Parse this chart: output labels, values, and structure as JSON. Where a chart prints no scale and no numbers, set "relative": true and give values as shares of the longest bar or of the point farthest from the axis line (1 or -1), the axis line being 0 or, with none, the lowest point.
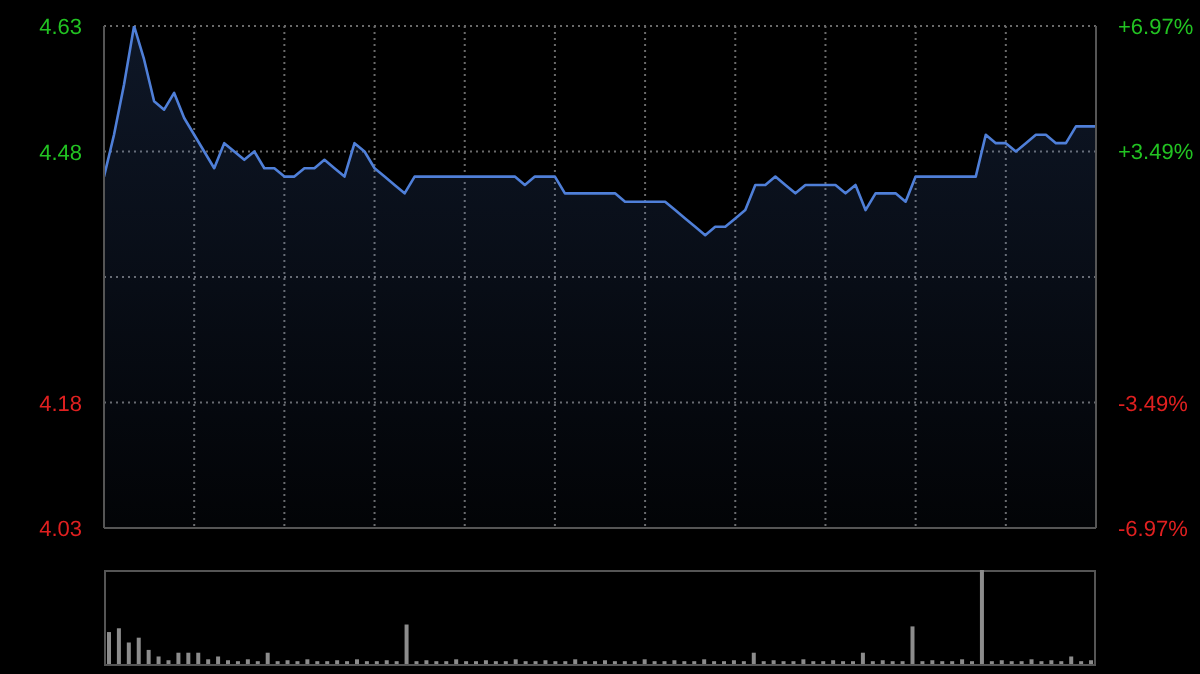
{
  "chart_data": [
    {
      "type": "area",
      "categories": [
        null,
        null,
        null,
        null,
        null,
        null,
        null,
        null,
        null,
        null,
        null,
        null,
        null,
        null,
        null,
        null,
        null,
        null,
        null,
        null,
        null,
        null,
        null,
        null,
        null,
        null,
        null,
        null,
        null,
        null,
        null,
        null,
        null,
        null,
        null,
        null,
        null,
        null,
        null,
        null,
        null,
        null,
        null,
        null,
        null,
        null,
        null,
        null,
        null,
        null,
        null,
        null,
        null,
        null,
        null,
        null,
        null,
        null,
        null,
        null,
        null,
        null,
        null,
        null,
        null,
        null,
        null,
        null,
        null,
        null,
        null,
        null,
        null,
        null,
        null,
        null,
        null,
        null,
        null,
        null,
        null,
        null,
        null,
        null,
        null,
        null,
        null,
        null,
        null,
        null,
        null,
        null,
        null,
        null,
        null,
        null,
        null,
        null,
        null,
        null
      ],
      "series": [
        {
          "color": "#4f7fd8",
          "values": [
            4.45,
            4.5,
            4.56,
            4.63,
            4.59,
            4.54,
            4.53,
            4.55,
            4.52,
            4.5,
            4.48,
            4.46,
            4.49,
            4.48,
            4.47,
            4.48,
            4.46,
            4.46,
            4.45,
            4.45,
            4.46,
            4.46,
            4.47,
            4.46,
            4.45,
            4.49,
            4.48,
            4.46,
            4.45,
            4.44,
            4.43,
            4.45,
            4.45,
            4.45,
            4.45,
            4.45,
            4.45,
            4.45,
            4.45,
            4.45,
            4.45,
            4.45,
            4.44,
            4.45,
            4.45,
            4.45,
            4.43,
            4.43,
            4.43,
            4.43,
            4.43,
            4.43,
            4.42,
            4.42,
            4.42,
            4.42,
            4.42,
            4.41,
            4.4,
            4.39,
            4.38,
            4.39,
            4.39,
            4.4,
            4.41,
            4.44,
            4.44,
            4.45,
            4.44,
            4.43,
            4.44,
            4.44,
            4.44,
            4.44,
            4.43,
            4.44,
            4.41,
            4.43,
            4.43,
            4.43,
            4.42,
            4.45,
            4.45,
            4.45,
            4.45,
            4.45,
            4.45,
            4.45,
            4.5,
            4.49,
            4.49,
            4.48,
            4.49,
            4.5,
            4.5,
            4.49,
            4.49,
            4.51,
            4.51,
            4.51
          ]
        }
      ],
      "ylim": [
        4.03,
        4.63
      ],
      "yticks": [
        4.63,
        4.48,
        {
          "value": 4.33,
          "label": null
        },
        4.18,
        4.03
      ],
      "y2lim": [
        -6.97,
        6.97
      ],
      "y2ticks": [
        {
          "value": 6.97,
          "label": "+6.97%"
        },
        {
          "value": 3.49,
          "label": "+3.49%"
        },
        {
          "value": -3.49,
          "label": "-3.49%"
        },
        {
          "value": -6.97,
          "label": "-6.97%"
        }
      ],
      "grid": true,
      "legend": false
    },
    {
      "type": "bar",
      "relative": true,
      "categories": [
        null,
        null,
        null,
        null,
        null,
        null,
        null,
        null,
        null,
        null,
        null,
        null,
        null,
        null,
        null,
        null,
        null,
        null,
        null,
        null,
        null,
        null,
        null,
        null,
        null,
        null,
        null,
        null,
        null,
        null,
        null,
        null,
        null,
        null,
        null,
        null,
        null,
        null,
        null,
        null,
        null,
        null,
        null,
        null,
        null,
        null,
        null,
        null,
        null,
        null,
        null,
        null,
        null,
        null,
        null,
        null,
        null,
        null,
        null,
        null,
        null,
        null,
        null,
        null,
        null,
        null,
        null,
        null,
        null,
        null,
        null,
        null,
        null,
        null,
        null,
        null,
        null,
        null,
        null,
        null,
        null,
        null,
        null,
        null,
        null,
        null,
        null,
        null,
        null,
        null,
        null,
        null,
        null,
        null,
        null,
        null,
        null,
        null,
        null,
        null
      ],
      "series": [
        {
          "color": "#8c8c8c",
          "values": [
            0.34,
            0.38,
            0.23,
            0.28,
            0.15,
            0.08,
            0.04,
            0.12,
            0.12,
            0.12,
            0.05,
            0.08,
            0.04,
            0.03,
            0.05,
            0.03,
            0.12,
            0.03,
            0.04,
            0.03,
            0.05,
            0.03,
            0.03,
            0.04,
            0.03,
            0.05,
            0.03,
            0.03,
            0.04,
            0.03,
            0.42,
            0.03,
            0.04,
            0.03,
            0.03,
            0.05,
            0.03,
            0.03,
            0.04,
            0.03,
            0.03,
            0.05,
            0.03,
            0.03,
            0.04,
            0.03,
            0.03,
            0.05,
            0.03,
            0.03,
            0.04,
            0.03,
            0.03,
            0.03,
            0.05,
            0.03,
            0.03,
            0.04,
            0.03,
            0.03,
            0.05,
            0.03,
            0.03,
            0.04,
            0.03,
            0.12,
            0.03,
            0.04,
            0.03,
            0.03,
            0.05,
            0.03,
            0.03,
            0.04,
            0.03,
            0.03,
            0.12,
            0.03,
            0.04,
            0.03,
            0.03,
            0.4,
            0.03,
            0.04,
            0.03,
            0.03,
            0.05,
            0.03,
            1,
            0.03,
            0.04,
            0.03,
            0.03,
            0.05,
            0.03,
            0.04,
            0.03,
            0.08,
            0.03,
            0.04
          ]
        }
      ],
      "legend": false
    }
  ]
}
